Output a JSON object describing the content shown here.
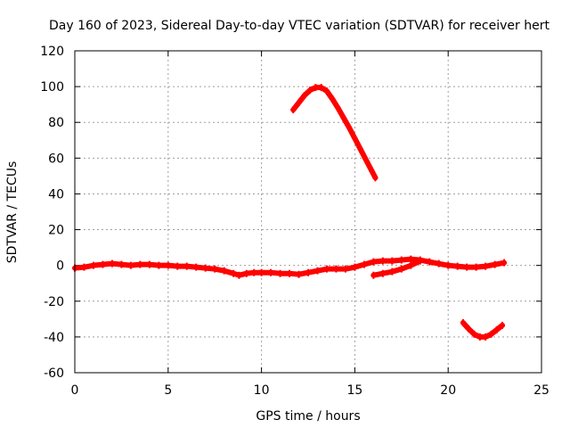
{
  "chart_data": {
    "type": "scatter",
    "title": "Day 160 of 2023, Sidereal Day-to-day VTEC variation (SDTVAR) for receiver hert",
    "xlabel": "GPS time / hours",
    "ylabel": "SDTVAR / TECUs",
    "xlim": [
      0,
      25
    ],
    "ylim": [
      -60,
      120
    ],
    "xticks": [
      0,
      5,
      10,
      15,
      20,
      25
    ],
    "yticks": [
      -60,
      -40,
      -20,
      0,
      20,
      40,
      60,
      80,
      100,
      120
    ],
    "grid": true,
    "marker_color": "#ff0000",
    "series": [
      {
        "name": "main-track",
        "x": [
          0.0,
          0.5,
          1.0,
          1.5,
          2.0,
          2.5,
          3.0,
          3.5,
          4.0,
          4.5,
          5.0,
          5.5,
          6.0,
          6.5,
          7.0,
          7.5,
          8.0,
          8.5,
          8.8,
          9.2,
          9.6,
          10.0,
          10.5,
          11.0,
          11.5,
          12.0,
          12.5,
          13.0,
          13.5,
          14.0,
          14.5,
          15.0,
          15.5,
          16.0,
          16.5,
          17.0,
          17.5,
          18.0,
          18.5,
          19.0,
          19.5,
          20.0,
          20.5,
          21.0,
          21.5,
          22.0,
          22.5,
          23.0
        ],
        "y": [
          -1.5,
          -1.0,
          0.0,
          0.5,
          1.0,
          0.5,
          0.0,
          0.5,
          0.5,
          0.0,
          0.0,
          -0.5,
          -0.5,
          -1.0,
          -1.5,
          -2.0,
          -3.0,
          -4.5,
          -5.5,
          -4.5,
          -4.0,
          -4.0,
          -4.0,
          -4.5,
          -4.5,
          -5.0,
          -4.0,
          -3.0,
          -2.0,
          -2.0,
          -2.0,
          -1.0,
          0.5,
          2.0,
          2.5,
          2.5,
          3.0,
          3.5,
          3.0,
          2.0,
          1.0,
          0.0,
          -0.5,
          -1.0,
          -1.0,
          -0.5,
          0.5,
          1.5
        ]
      },
      {
        "name": "upper-arc",
        "x": [
          11.7,
          12.0,
          12.3,
          12.6,
          12.9,
          13.2,
          13.5,
          13.8,
          14.1,
          14.4,
          14.7,
          15.0,
          15.3,
          15.6,
          15.9,
          16.1
        ],
        "y": [
          87,
          91,
          95,
          98,
          99.5,
          99.5,
          97.5,
          93,
          88,
          82.5,
          77,
          71,
          65,
          59,
          53,
          49
        ]
      },
      {
        "name": "short-rise",
        "x": [
          16.0,
          16.5,
          17.0,
          17.5,
          18.0,
          18.5
        ],
        "y": [
          -5.5,
          -4.5,
          -3.5,
          -2.0,
          0.0,
          2.5
        ]
      },
      {
        "name": "lower-arc",
        "x": [
          20.8,
          21.1,
          21.4,
          21.7,
          22.0,
          22.3,
          22.6,
          22.9
        ],
        "y": [
          -32,
          -35.5,
          -38.5,
          -40,
          -40,
          -38.5,
          -36,
          -33.5
        ]
      }
    ]
  }
}
